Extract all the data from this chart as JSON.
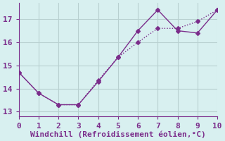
{
  "line1_x": [
    0,
    1,
    2,
    3,
    4,
    5,
    6,
    7,
    8,
    9,
    10
  ],
  "line1_y": [
    14.7,
    13.8,
    13.3,
    13.3,
    14.3,
    15.35,
    16.5,
    17.4,
    16.5,
    16.4,
    17.4
  ],
  "line2_x": [
    0,
    1,
    2,
    3,
    4,
    5,
    6,
    7,
    8,
    9,
    10
  ],
  "line2_y": [
    14.7,
    13.8,
    13.3,
    13.3,
    14.35,
    15.35,
    16.0,
    16.6,
    16.6,
    16.9,
    17.4
  ],
  "color": "#7b2d8b",
  "bg_color": "#d8f0f0",
  "grid_color": "#b8d0d0",
  "xlabel": "Windchill (Refroidissement éolien,°C)",
  "xlim": [
    0,
    10
  ],
  "ylim": [
    12.8,
    17.7
  ],
  "yticks": [
    13,
    14,
    15,
    16,
    17
  ],
  "xticks": [
    0,
    1,
    2,
    3,
    4,
    5,
    6,
    7,
    8,
    9,
    10
  ],
  "marker": "D",
  "markersize": 3,
  "linewidth": 1.0,
  "xlabel_fontsize": 8,
  "tick_fontsize": 8
}
